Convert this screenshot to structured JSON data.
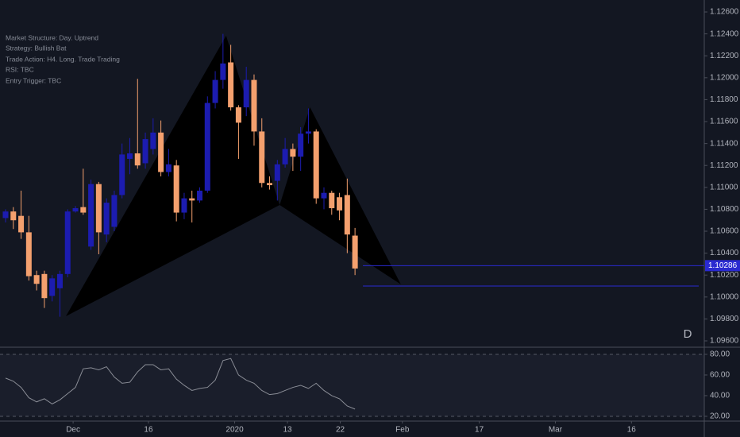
{
  "chart_data": [
    {
      "type": "candlestick",
      "notes": [
        "Market Structure: Day. Uptrend",
        "Strategy: Bullish Bat",
        "Trade Action: H4. Long. Trade Trading",
        "RSI:  TBC",
        "Entry Trigger: TBC"
      ],
      "corner_label": "D",
      "up_color": "#1c1cb0",
      "down_color": "#f4a06e",
      "x": [
        0,
        1,
        2,
        3,
        4,
        5,
        6,
        7,
        8,
        9,
        10,
        11,
        12,
        13,
        14,
        15,
        16,
        17,
        18,
        19,
        20,
        21,
        22,
        23,
        24,
        25,
        26,
        27,
        28,
        29,
        30,
        31,
        32,
        33,
        34,
        35,
        36,
        37,
        38,
        39,
        40,
        41,
        42,
        43,
        44,
        45
      ],
      "open": [
        1.1072,
        1.1078,
        1.1074,
        1.1059,
        1.102,
        1.1021,
        1.1001,
        1.1008,
        1.1021,
        1.1078,
        1.1082,
        1.1046,
        1.1103,
        1.1057,
        1.1064,
        1.1093,
        1.1126,
        1.1131,
        1.1122,
        1.1135,
        1.115,
        1.1114,
        1.112,
        1.1077,
        1.109,
        1.1088,
        1.1097,
        1.1177,
        1.1198,
        1.1214,
        1.1173,
        1.1173,
        1.1198,
        1.1151,
        1.1104,
        1.1106,
        1.1121,
        1.1135,
        1.1128,
        1.1149,
        1.1151,
        1.109,
        1.1095,
        1.1091,
        1.1093,
        1.1056
      ],
      "high": [
        1.108,
        1.1082,
        1.1097,
        1.1074,
        1.1024,
        1.1024,
        1.102,
        1.1024,
        1.108,
        1.1083,
        1.1117,
        1.1107,
        1.1105,
        1.109,
        1.1097,
        1.114,
        1.1145,
        1.1199,
        1.115,
        1.1163,
        1.1161,
        1.1135,
        1.1125,
        1.1095,
        1.1097,
        1.11,
        1.1183,
        1.1206,
        1.124,
        1.123,
        1.1175,
        1.121,
        1.1203,
        1.1163,
        1.111,
        1.1125,
        1.1145,
        1.114,
        1.1155,
        1.1172,
        1.1153,
        1.11,
        1.1097,
        1.1095,
        1.1108,
        1.1063
      ],
      "low": [
        1.1068,
        1.1062,
        1.1053,
        1.1015,
        1.1006,
        1.099,
        1.0996,
        1.0982,
        1.1018,
        1.1077,
        1.1075,
        1.1043,
        1.1039,
        1.105,
        1.106,
        1.109,
        1.1112,
        1.1117,
        1.1117,
        1.113,
        1.111,
        1.111,
        1.1069,
        1.1071,
        1.1068,
        1.1086,
        1.1095,
        1.1172,
        1.119,
        1.117,
        1.1126,
        1.1165,
        1.1138,
        1.11,
        1.1098,
        1.1088,
        1.1118,
        1.1115,
        1.1115,
        1.114,
        1.1085,
        1.108,
        1.1075,
        1.107,
        1.104,
        1.102
      ],
      "close": [
        1.1078,
        1.107,
        1.1059,
        1.1019,
        1.1012,
        1.0999,
        1.1017,
        1.1021,
        1.1078,
        1.1081,
        1.1077,
        1.1103,
        1.1059,
        1.1086,
        1.1093,
        1.113,
        1.1131,
        1.112,
        1.1144,
        1.115,
        1.1114,
        1.1121,
        1.1077,
        1.109,
        1.1088,
        1.1097,
        1.1177,
        1.1198,
        1.1213,
        1.1173,
        1.1159,
        1.1198,
        1.1151,
        1.1104,
        1.1102,
        1.1121,
        1.1135,
        1.1128,
        1.1149,
        1.1151,
        1.109,
        1.1095,
        1.1081,
        1.1079,
        1.1057,
        1.1026
      ],
      "pattern": {
        "color": "#000000",
        "points": [
          {
            "x": 7.77,
            "y": 1.09825
          },
          {
            "x": 28.4,
            "y": 1.12383
          },
          {
            "x": 35.3,
            "y": 1.10839
          },
          {
            "x": 39.2,
            "y": 1.11731
          },
          {
            "x": 50.9,
            "y": 1.10115
          }
        ]
      },
      "hlines": [
        {
          "value": 1.10286,
          "label": "1.10286"
        },
        {
          "value": 1.101
        }
      ],
      "line_color": "#2a2ad0",
      "xlim": [
        -0.716,
        89.26
      ],
      "xticks": [
        {
          "value": 8.7,
          "label": "Dec"
        },
        {
          "value": 18.4,
          "label": "16"
        },
        {
          "value": 29.5,
          "label": "2020"
        },
        {
          "value": 36.3,
          "label": "13"
        },
        {
          "value": 43.1,
          "label": "22"
        },
        {
          "value": 51.1,
          "label": "Feb"
        },
        {
          "value": 61,
          "label": "17"
        },
        {
          "value": 70.8,
          "label": "Mar"
        },
        {
          "value": 80.6,
          "label": "16"
        }
      ],
      "ylim": [
        1.09542,
        1.12709
      ],
      "yticks": [
        {
          "value": 1.126,
          "label": "1.12600"
        },
        {
          "value": 1.124,
          "label": "1.12400"
        },
        {
          "value": 1.122,
          "label": "1.12200"
        },
        {
          "value": 1.12,
          "label": "1.12000"
        },
        {
          "value": 1.118,
          "label": "1.11800"
        },
        {
          "value": 1.116,
          "label": "1.11600"
        },
        {
          "value": 1.114,
          "label": "1.11400"
        },
        {
          "value": 1.112,
          "label": "1.11200"
        },
        {
          "value": 1.11,
          "label": "1.11000"
        },
        {
          "value": 1.108,
          "label": "1.10800"
        },
        {
          "value": 1.106,
          "label": "1.10600"
        },
        {
          "value": 1.104,
          "label": "1.10400"
        },
        {
          "value": 1.102,
          "label": "1.10200"
        },
        {
          "value": 1.1,
          "label": "1.10000"
        },
        {
          "value": 1.098,
          "label": "1.09800"
        },
        {
          "value": 1.096,
          "label": "1.09600"
        }
      ]
    },
    {
      "type": "line",
      "color": "#8a8d96",
      "x": [
        0,
        1,
        2,
        3,
        4,
        5,
        6,
        7,
        8,
        9,
        10,
        11,
        12,
        13,
        14,
        15,
        16,
        17,
        18,
        19,
        20,
        21,
        22,
        23,
        24,
        25,
        26,
        27,
        28,
        29,
        30,
        31,
        32,
        33,
        34,
        35,
        36,
        37,
        38,
        39,
        40,
        41,
        42,
        43,
        44,
        45
      ],
      "values": [
        57,
        54,
        48,
        38,
        34,
        37,
        32,
        36,
        42,
        48,
        66,
        67,
        65,
        68,
        58,
        52,
        53,
        63,
        70,
        70,
        65,
        66,
        56,
        50,
        45,
        47,
        48,
        55,
        74,
        76,
        60,
        55,
        52,
        45,
        41,
        42,
        45,
        48,
        50,
        47,
        52,
        45,
        40,
        37,
        30,
        27
      ],
      "xlim": [
        -0.716,
        89.26
      ],
      "ylim": [
        16.9,
        86.9
      ],
      "yticks": [
        {
          "value": 80,
          "label": "80.00"
        },
        {
          "value": 60,
          "label": "60.00"
        },
        {
          "value": 40,
          "label": "40.00"
        },
        {
          "value": 20,
          "label": "20.00"
        }
      ]
    }
  ]
}
